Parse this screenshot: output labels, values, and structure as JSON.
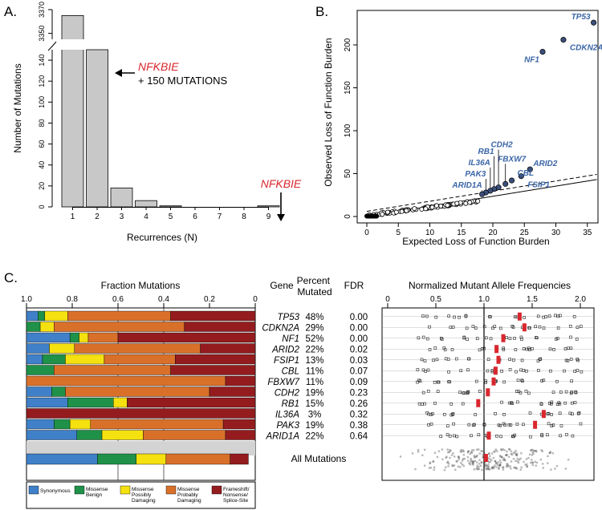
{
  "panels": {
    "a": "A.",
    "b": "B.",
    "c": "C."
  },
  "colors": {
    "bar_gray": "#c8c8c8",
    "accent_red": "#d9272e",
    "gene_blue": "#3b66a8",
    "point_navy": "#3b4f7a",
    "synonymous": "#3f80c8",
    "missense_benign": "#1f9148",
    "missense_possibly": "#f5e10f",
    "missense_probably": "#d9702a",
    "frameshift": "#941c1f",
    "heatmap_gray": "#d3d3d3"
  },
  "chart_data": [
    {
      "id": "A",
      "type": "bar",
      "xlabel": "Recurrences (N)",
      "ylabel": "Number of Mutations",
      "categories": [
        "1",
        "2",
        "3",
        "4",
        "5",
        "6",
        "7",
        "8",
        "9"
      ],
      "values": [
        3365,
        150,
        18,
        6,
        1,
        0,
        0,
        0,
        1
      ],
      "broken_axis": {
        "lower_ylim": [
          0,
          150
        ],
        "upper_ylim": [
          3345,
          3370
        ]
      },
      "lower_ticks": [
        "0",
        "20",
        "40",
        "60",
        "80",
        "100",
        "120",
        "140"
      ],
      "upper_ticks": [
        "3350",
        "3370"
      ],
      "annotations": [
        {
          "bar": "2",
          "gene": "NFKBIE",
          "text": "+ 150 MUTATIONS"
        },
        {
          "bar": "9",
          "gene": "NFKBIE"
        }
      ]
    },
    {
      "id": "B",
      "type": "scatter",
      "xlabel": "Expected Loss of Function Burden",
      "ylabel": "Observed Loss of Function Burden",
      "xlim": [
        0,
        36
      ],
      "ylim": [
        0,
        230
      ],
      "xticks": [
        "0",
        "5",
        "10",
        "15",
        "20",
        "25",
        "30",
        "35"
      ],
      "yticks": [
        "0",
        "50",
        "100",
        "150",
        "200"
      ],
      "reference_lines": [
        {
          "style": "solid",
          "slope": 1.0,
          "intercept": 0
        },
        {
          "style": "dashed",
          "slope": 1.0,
          "intercept": 6
        }
      ],
      "labeled_points": [
        {
          "gene": "TP53",
          "x": 36.0,
          "y": 226
        },
        {
          "gene": "CDKN2A",
          "x": 31.2,
          "y": 206
        },
        {
          "gene": "NF1",
          "x": 27.9,
          "y": 192
        },
        {
          "gene": "ARID2",
          "x": 25.9,
          "y": 55
        },
        {
          "gene": "FSIP1",
          "x": 24.5,
          "y": 47
        },
        {
          "gene": "CBL",
          "x": 23.0,
          "y": 42
        },
        {
          "gene": "FBXW7",
          "x": 22.0,
          "y": 38
        },
        {
          "gene": "CDH2",
          "x": 20.9,
          "y": 34
        },
        {
          "gene": "RB1",
          "x": 20.2,
          "y": 32
        },
        {
          "gene": "IL36A",
          "x": 19.6,
          "y": 30
        },
        {
          "gene": "PAK3",
          "x": 18.9,
          "y": 28
        },
        {
          "gene": "ARID1A",
          "x": 18.3,
          "y": 26
        }
      ]
    },
    {
      "id": "C",
      "type": "table",
      "title_fraction": "Fraction Mutations",
      "title_nmaf": "Normalized Mutant Allele Frequencies",
      "col_gene": "Gene",
      "col_percent": "Percent Mutated",
      "col_fdr": "FDR",
      "fraction_ticks": [
        "1.0",
        "0.8",
        "0.6",
        "0.4",
        "0.2",
        "0"
      ],
      "nmaf_ticks": [
        "0",
        "0.5",
        "1.0",
        "1.5",
        "2.0"
      ],
      "nmaf_xlim": [
        0,
        2.05
      ],
      "rows": [
        {
          "gene": "TP53",
          "percent": "48%",
          "fdr": "0.00",
          "fractions": [
            0.05,
            0.03,
            0.1,
            0.45,
            0.37
          ],
          "median": 1.37
        },
        {
          "gene": "CDKN2A",
          "percent": "29%",
          "fdr": "0.00",
          "fractions": [
            0.0,
            0.06,
            0.06,
            0.57,
            0.31
          ],
          "median": 1.42
        },
        {
          "gene": "NF1",
          "percent": "52%",
          "fdr": "0.00",
          "fractions": [
            0.19,
            0.04,
            0.04,
            0.13,
            0.6
          ],
          "median": 1.2
        },
        {
          "gene": "ARID2",
          "percent": "22%",
          "fdr": "0.02",
          "fractions": [
            0.1,
            0.0,
            0.11,
            0.55,
            0.24
          ],
          "median": 1.13
        },
        {
          "gene": "FSIP1",
          "percent": "13%",
          "fdr": "0.03",
          "fractions": [
            0.07,
            0.1,
            0.17,
            0.31,
            0.35
          ],
          "median": 1.15
        },
        {
          "gene": "CBL",
          "percent": "11%",
          "fdr": "0.07",
          "fractions": [
            0.0,
            0.12,
            0.0,
            0.51,
            0.37
          ],
          "median": 1.12
        },
        {
          "gene": "FBXW7",
          "percent": "11%",
          "fdr": "0.09",
          "fractions": [
            0.0,
            0.0,
            0.0,
            0.87,
            0.13
          ],
          "median": 1.1
        },
        {
          "gene": "CDH2",
          "percent": "19%",
          "fdr": "0.23",
          "fractions": [
            0.11,
            0.06,
            0.0,
            0.63,
            0.2
          ],
          "median": 1.04
        },
        {
          "gene": "RB1",
          "percent": "15%",
          "fdr": "0.26",
          "fractions": [
            0.18,
            0.2,
            0.06,
            0.0,
            0.56
          ],
          "median": 0.94
        },
        {
          "gene": "IL36A",
          "percent": "3%",
          "fdr": "0.32",
          "fractions": [
            0.0,
            0.0,
            0.0,
            0.0,
            1.0
          ],
          "median": 1.62
        },
        {
          "gene": "PAK3",
          "percent": "19%",
          "fdr": "0.38",
          "fractions": [
            0.12,
            0.07,
            0.09,
            0.58,
            0.14
          ],
          "median": 1.53
        },
        {
          "gene": "ARID1A",
          "percent": "22%",
          "fdr": "0.64",
          "fractions": [
            0.22,
            0.11,
            0.18,
            0.36,
            0.13
          ],
          "median": 1.05
        }
      ],
      "all_mutations": {
        "label": "All Mutations",
        "fractions": [
          0.31,
          0.17,
          0.13,
          0.28,
          0.08
        ],
        "median": 1.02
      },
      "legend": [
        {
          "lines": [
            "Synonymous"
          ]
        },
        {
          "lines": [
            "Missense",
            "Benign"
          ]
        },
        {
          "lines": [
            "Missense",
            "Possibly",
            "Damaging"
          ]
        },
        {
          "lines": [
            "Missense",
            "Probably",
            "Damaging"
          ]
        },
        {
          "lines": [
            "Frameshift/",
            "Nonsense/",
            "Splice-Site"
          ]
        }
      ]
    }
  ]
}
